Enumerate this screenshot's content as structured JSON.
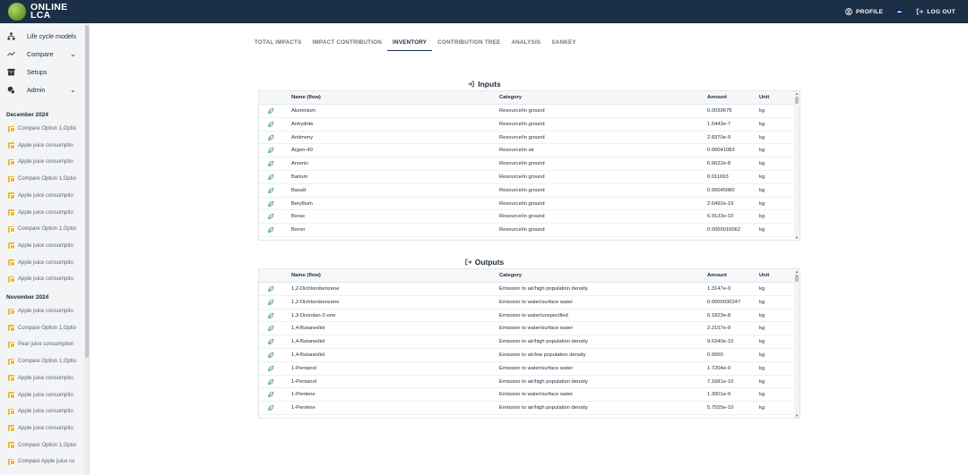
{
  "brand": {
    "line1": "ONLINE",
    "line2": "LCA"
  },
  "header": {
    "profile_label": "PROFILE",
    "logout_label": "LOG OUT"
  },
  "sidebar": {
    "nav": [
      {
        "label": "Life cycle models",
        "icon": "tree-icon"
      },
      {
        "label": "Compare",
        "icon": "compare-icon"
      },
      {
        "label": "Setups",
        "icon": "archive-icon"
      },
      {
        "label": "Admin",
        "icon": "admin-icon"
      }
    ],
    "groups": [
      {
        "month": "December 2024",
        "items": [
          "Compare Option 1,Optio",
          "Apple juice consumptio",
          "Apple juice consumptio",
          "Compare Option 1,Optio",
          "Apple juice consumptio",
          "Apple juice consumptio",
          "Compare Option 1,Optio",
          "Apple juice consumptio",
          "Apple juice consumptio",
          "Apple juice consumptio"
        ]
      },
      {
        "month": "November 2024",
        "items": [
          "Apple juice consumptio",
          "Compare Option 1,Optio",
          "Pear juice consumption",
          "Compare Option 1,Optio",
          "Apple juice consumptio",
          "Apple juice consumptio",
          "Apple juice consumptio",
          "Apple juice consumptio",
          "Compare Option 1,Optio",
          "Compare Apple juice co"
        ]
      }
    ]
  },
  "tabs": [
    {
      "label": "TOTAL IMPACTS",
      "active": false
    },
    {
      "label": "IMPACT CONTRIBUTION",
      "active": false
    },
    {
      "label": "INVENTORY",
      "active": true
    },
    {
      "label": "CONTRIBUTION TREE",
      "active": false
    },
    {
      "label": "ANALYSIS",
      "active": false
    },
    {
      "label": "SANKEY",
      "active": false
    }
  ],
  "inputs": {
    "title": "Inputs",
    "columns": {
      "name": "Name (flow)",
      "category": "Category",
      "amount": "Amount",
      "unit": "Unit"
    },
    "rows": [
      {
        "name": "Aluminium",
        "category": "Resource/in ground",
        "amount": "0.0039679",
        "unit": "kg"
      },
      {
        "name": "Anhydrite",
        "category": "Resource/in ground",
        "amount": "1.5443e-7",
        "unit": "kg"
      },
      {
        "name": "Antimony",
        "category": "Resource/in ground",
        "amount": "2.8370e-9",
        "unit": "kg"
      },
      {
        "name": "Argon-40",
        "category": "Resource/in air",
        "amount": "0.00041083",
        "unit": "kg"
      },
      {
        "name": "Arsenic",
        "category": "Resource/in ground",
        "amount": "6.6622e-8",
        "unit": "kg"
      },
      {
        "name": "Barium",
        "category": "Resource/in ground",
        "amount": "0.011693",
        "unit": "kg"
      },
      {
        "name": "Basalt",
        "category": "Resource/in ground",
        "amount": "0.00045080",
        "unit": "kg"
      },
      {
        "name": "Beryllium",
        "category": "Resource/in ground",
        "amount": "2.6492e-19",
        "unit": "kg"
      },
      {
        "name": "Borax",
        "category": "Resource/in ground",
        "amount": "6.9133e-10",
        "unit": "kg"
      },
      {
        "name": "Boron",
        "category": "Resource/in ground",
        "amount": "0.0000016062",
        "unit": "kg"
      }
    ]
  },
  "outputs": {
    "title": "Outputs",
    "columns": {
      "name": "Name (flow)",
      "category": "Category",
      "amount": "Amount",
      "unit": "Unit"
    },
    "rows": [
      {
        "name": "1,2-Dichlorobenzene",
        "category": "Emission to air/high population density",
        "amount": "1.3147e-9",
        "unit": "kg"
      },
      {
        "name": "1,2-Dichlorobenzene",
        "category": "Emission to water/surface water",
        "amount": "0.0000030247",
        "unit": "kg"
      },
      {
        "name": "1,3-Dioxolan-2-one",
        "category": "Emission to water/unspecified",
        "amount": "6.1823e-8",
        "unit": "kg"
      },
      {
        "name": "1,4-Butanediol",
        "category": "Emission to water/surface water",
        "amount": "2.2157e-9",
        "unit": "kg"
      },
      {
        "name": "1,4-Butanediol",
        "category": "Emission to air/high population density",
        "amount": "9.6340e-10",
        "unit": "kg"
      },
      {
        "name": "1,4-Butanediol",
        "category": "Emission to air/low population density",
        "amount": "0.0000",
        "unit": "kg"
      },
      {
        "name": "1-Pentanol",
        "category": "Emission to water/surface water",
        "amount": "1.7204e-9",
        "unit": "kg"
      },
      {
        "name": "1-Pentanol",
        "category": "Emission to air/high population density",
        "amount": "7.1681e-10",
        "unit": "kg"
      },
      {
        "name": "1-Pentene",
        "category": "Emission to water/surface water",
        "amount": "1.3001e-9",
        "unit": "kg"
      },
      {
        "name": "1-Pentene",
        "category": "Emission to air/high population density",
        "amount": "5.7555e-10",
        "unit": "kg"
      }
    ]
  }
}
